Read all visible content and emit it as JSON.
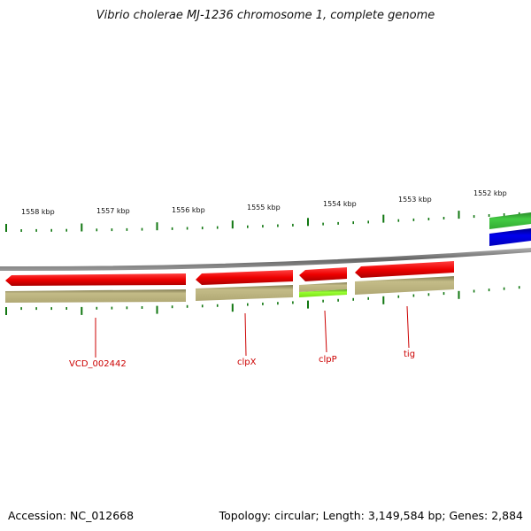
{
  "map": {
    "title": "Vibrio cholerae MJ-1236 chromosome 1, complete genome",
    "accession": "Accession: NC_012668",
    "summary": "Topology: circular; Length: 3,149,584 bp; Genes: 2,884"
  },
  "kbp_ticks": [
    {
      "label": "1558 kbp"
    },
    {
      "label": "1557 kbp"
    },
    {
      "label": "1556 kbp"
    },
    {
      "label": "1555 kbp"
    },
    {
      "label": "1554 kbp"
    },
    {
      "label": "1553 kbp"
    },
    {
      "label": "1552 kbp"
    }
  ],
  "genes": [
    {
      "label": "VCD_002442"
    },
    {
      "label": "clpX"
    },
    {
      "label": "clpP"
    },
    {
      "label": "tig"
    }
  ],
  "colors": {
    "cds_red": "#ee0000",
    "gene_tan": "#b8b07a",
    "clpp_green": "#88ee22",
    "track_green": "#33bb33",
    "track_blue": "#0000dd",
    "tick_green": "#117711",
    "backbone_gray": "#888888",
    "label_red": "#cc0000"
  }
}
